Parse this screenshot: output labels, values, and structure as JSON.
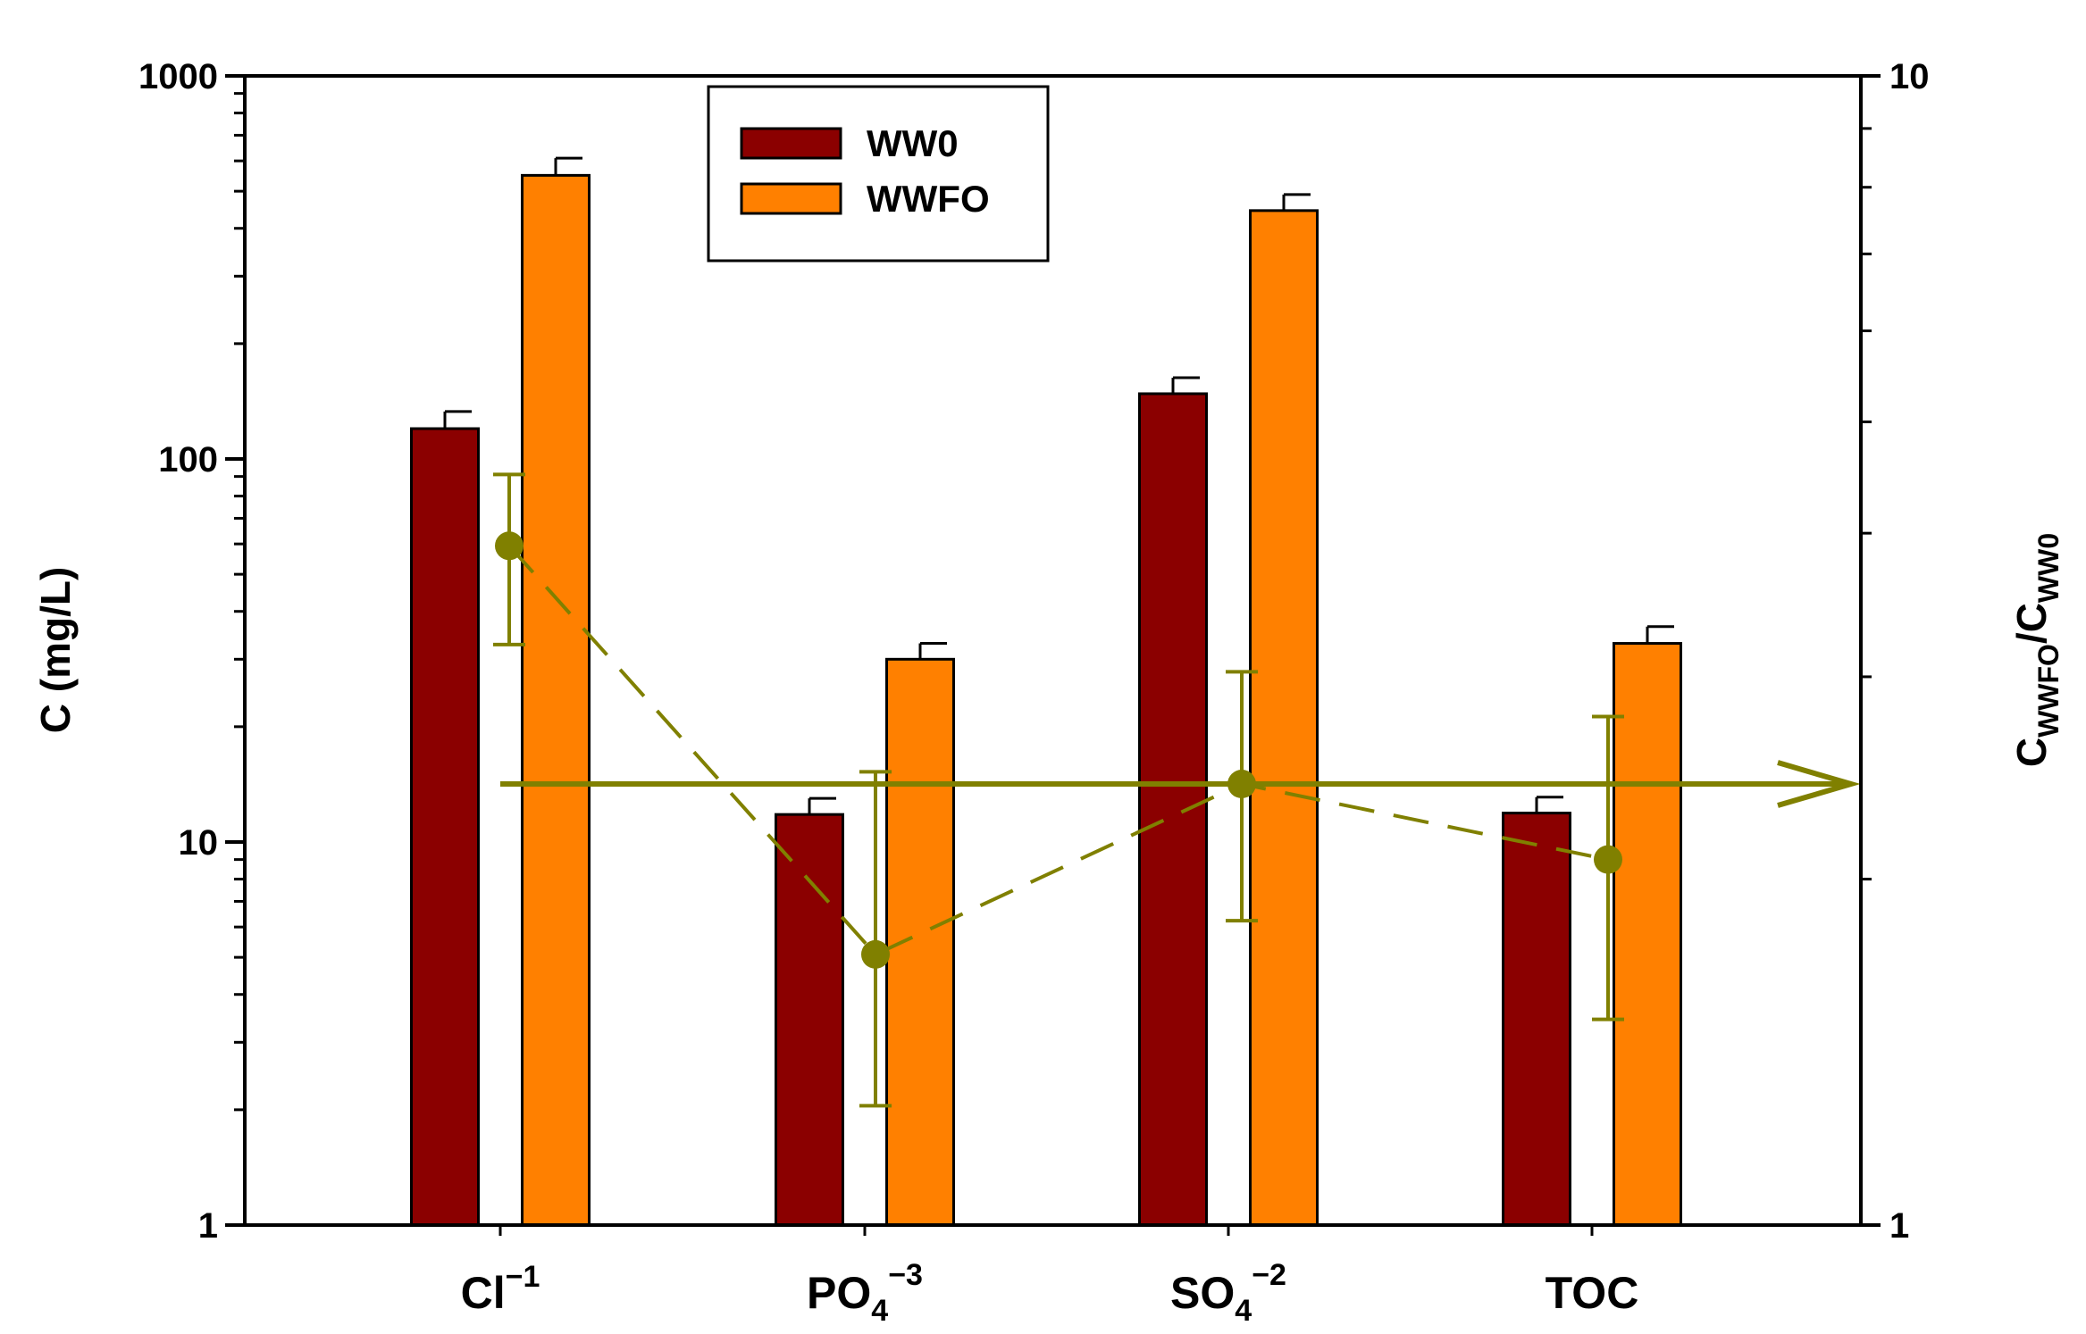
{
  "chart_data": {
    "type": "bar",
    "categories": [
      {
        "base": "Cl",
        "sub": "",
        "sup": "−1"
      },
      {
        "base": "PO",
        "sub": "4",
        "sup": "−3"
      },
      {
        "base": "SO",
        "sub": "4",
        "sup": "−2"
      },
      {
        "base": "TOC",
        "sub": "",
        "sup": ""
      }
    ],
    "series": [
      {
        "name": "WW0",
        "color": "#8b0000",
        "values": [
          120,
          11.8,
          148,
          11.9
        ],
        "error": [
          13,
          1.2,
          15,
          1.2
        ]
      },
      {
        "name": "WWFO",
        "color": "#ff8000",
        "values": [
          550,
          30,
          445,
          33
        ],
        "error": [
          60,
          3,
          45,
          3.5
        ]
      }
    ],
    "ratio_series": {
      "name": "CWWFO/CWW0",
      "color": "#808000",
      "values": [
        3.9,
        1.72,
        2.42,
        2.08
      ],
      "error_upper": [
        4.5,
        2.48,
        3.03,
        2.77
      ],
      "error_lower": [
        3.2,
        1.27,
        1.84,
        1.51
      ],
      "reference_value": 2.42
    },
    "y_left": {
      "label": "C (mg/L)",
      "scale": "log",
      "lim": [
        1,
        1000
      ],
      "ticks": [
        "1",
        "10",
        "100",
        "1000"
      ]
    },
    "y_right": {
      "label_base": "C",
      "label_sub1": "WWFO",
      "label_mid": "/C",
      "label_sub2": "WW0",
      "scale": "log",
      "lim": [
        1,
        10
      ],
      "ticks": [
        "1",
        "10"
      ]
    },
    "legend": {
      "position": "top-center",
      "entries": [
        "WW0",
        "WWFO"
      ]
    }
  }
}
